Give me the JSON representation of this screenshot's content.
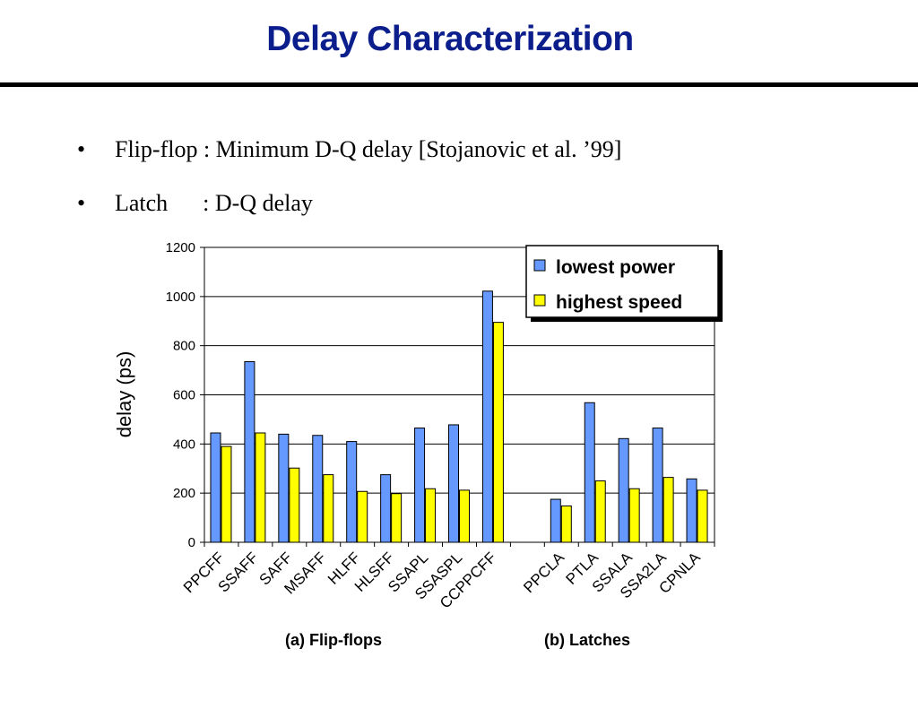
{
  "slide": {
    "title": "Delay Characterization",
    "bullets": [
      {
        "marker": "•",
        "text": "Flip-flop : Minimum D-Q delay [Stojanovic et al. ’99]"
      },
      {
        "marker": "•",
        "text": "Latch      : D-Q delay"
      }
    ]
  },
  "colors": {
    "title": "#0b1e8c",
    "lowest_power": "#6699ff",
    "highest_speed": "#ffff00"
  },
  "chart_data": {
    "type": "bar",
    "ylabel": "delay (ps)",
    "ylim": [
      0,
      1200
    ],
    "yticks": [
      0,
      200,
      400,
      600,
      800,
      1000,
      1200
    ],
    "grid": true,
    "legend_position": "top-right",
    "categories": [
      "PPCFF",
      "SSAFF",
      "SAFF",
      "MSAFF",
      "HLFF",
      "HLSFF",
      "SSAPL",
      "SSASPL",
      "CCPPCFF",
      "",
      "PPCLA",
      "PTLA",
      "SSALA",
      "SSA2LA",
      "CPNLA"
    ],
    "series": [
      {
        "name": "lowest power",
        "values": [
          445,
          735,
          440,
          435,
          410,
          275,
          465,
          478,
          1022,
          null,
          175,
          568,
          422,
          465,
          258
        ]
      },
      {
        "name": "highest speed",
        "values": [
          390,
          445,
          302,
          275,
          207,
          198,
          218,
          212,
          895,
          null,
          148,
          250,
          218,
          264,
          212
        ]
      }
    ],
    "group_labels": [
      "(a) Flip-flops",
      "(b) Latches"
    ]
  }
}
